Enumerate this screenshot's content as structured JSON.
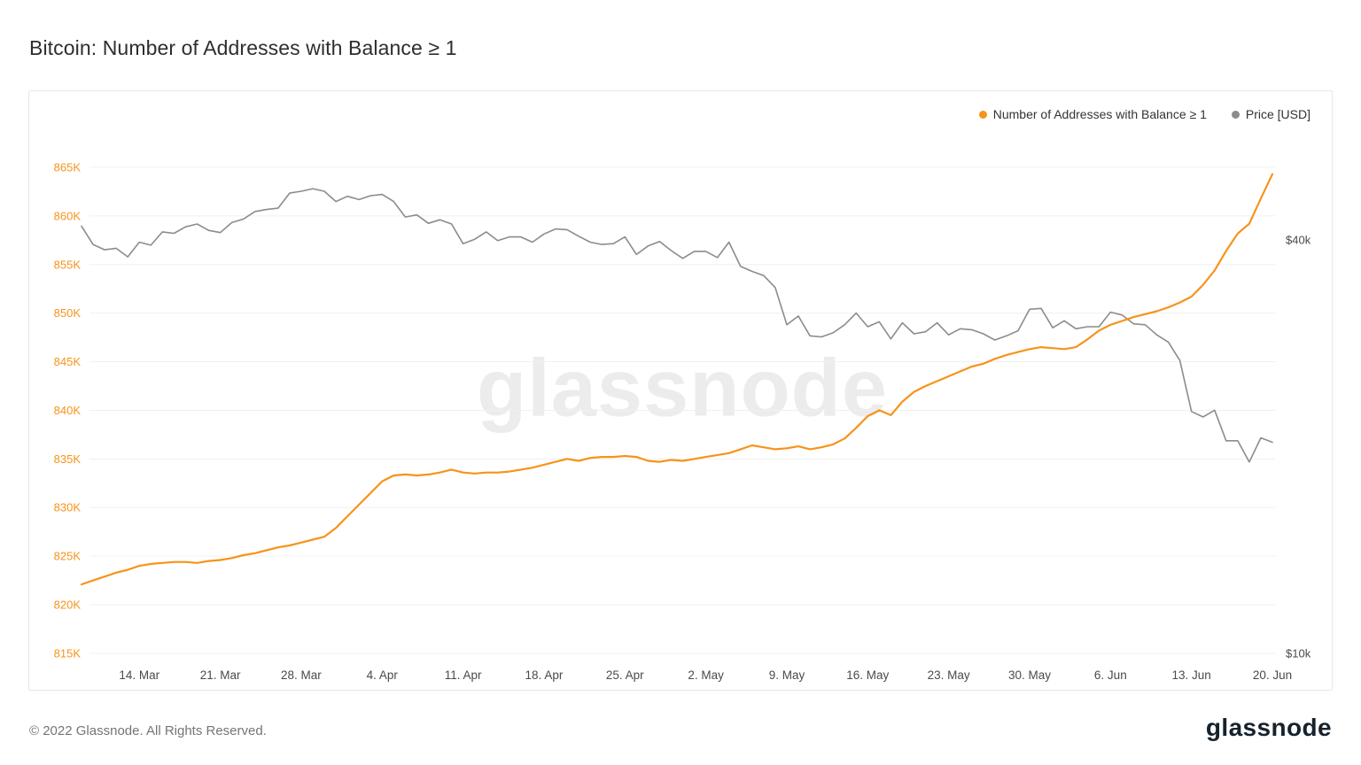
{
  "page": {
    "title": "Bitcoin: Number of Addresses with Balance ≥ 1",
    "watermark": "glassnode",
    "footer_copyright": "© 2022 Glassnode. All Rights Reserved.",
    "brand_logo_text": "glassnode"
  },
  "legend": [
    {
      "label": "Number of Addresses with Balance ≥ 1",
      "color": "#f7931a"
    },
    {
      "label": "Price [USD]",
      "color": "#8c8c8c"
    }
  ],
  "chart_data": {
    "type": "line",
    "title": "Bitcoin: Number of Addresses with Balance ≥ 1",
    "grid": true,
    "grid_color": "#f0f0f0",
    "legend_position": "top-right",
    "x_start": "9. Mar",
    "x_end": "20. Jun",
    "x_ticks": [
      {
        "index": 5,
        "label": "14. Mar"
      },
      {
        "index": 12,
        "label": "21. Mar"
      },
      {
        "index": 19,
        "label": "28. Mar"
      },
      {
        "index": 26,
        "label": "4. Apr"
      },
      {
        "index": 33,
        "label": "11. Apr"
      },
      {
        "index": 40,
        "label": "18. Apr"
      },
      {
        "index": 47,
        "label": "25. Apr"
      },
      {
        "index": 54,
        "label": "2. May"
      },
      {
        "index": 61,
        "label": "9. May"
      },
      {
        "index": 68,
        "label": "16. May"
      },
      {
        "index": 75,
        "label": "23. May"
      },
      {
        "index": 82,
        "label": "30. May"
      },
      {
        "index": 89,
        "label": "6. Jun"
      },
      {
        "index": 96,
        "label": "13. Jun"
      },
      {
        "index": 103,
        "label": "20. Jun"
      }
    ],
    "y_left": {
      "domain": [
        815,
        865
      ],
      "unit": "K addresses",
      "color": "#f7931a",
      "ticks": [
        {
          "value": 865,
          "label": "865K"
        },
        {
          "value": 860,
          "label": "860K"
        },
        {
          "value": 855,
          "label": "855K"
        },
        {
          "value": 850,
          "label": "850K"
        },
        {
          "value": 845,
          "label": "845K"
        },
        {
          "value": 840,
          "label": "840K"
        },
        {
          "value": 835,
          "label": "835K"
        },
        {
          "value": 830,
          "label": "830K"
        },
        {
          "value": 825,
          "label": "825K"
        },
        {
          "value": 820,
          "label": "820K"
        },
        {
          "value": 815,
          "label": "815K"
        }
      ]
    },
    "y_right": {
      "scale": "log",
      "unit": "USD (thousands)",
      "ticks": [
        {
          "value": 40,
          "label": "$40k"
        },
        {
          "value": 10,
          "label": "$10k"
        }
      ]
    },
    "series": [
      {
        "id": "addresses",
        "name": "Number of Addresses with Balance ≥ 1",
        "axis": "left",
        "unit": "K",
        "color": "#f7931a",
        "width": 2.2,
        "z": 1,
        "values": [
          822.1,
          822.5,
          822.9,
          823.3,
          823.6,
          824.0,
          824.2,
          824.3,
          824.4,
          824.4,
          824.3,
          824.5,
          824.6,
          824.8,
          825.1,
          825.3,
          825.6,
          825.9,
          826.1,
          826.4,
          826.7,
          827.0,
          827.9,
          829.1,
          830.3,
          831.5,
          832.7,
          833.3,
          833.4,
          833.3,
          833.4,
          833.6,
          833.9,
          833.6,
          833.5,
          833.6,
          833.6,
          833.7,
          833.9,
          834.1,
          834.4,
          834.7,
          835.0,
          834.8,
          835.1,
          835.2,
          835.2,
          835.3,
          835.2,
          834.8,
          834.7,
          834.9,
          834.8,
          835.0,
          835.2,
          835.4,
          835.6,
          836.0,
          836.4,
          836.2,
          836.0,
          836.1,
          836.3,
          836.0,
          836.2,
          836.5,
          837.1,
          838.2,
          839.4,
          840.0,
          839.5,
          840.9,
          841.9,
          842.5,
          843.0,
          843.5,
          844.0,
          844.5,
          844.8,
          845.3,
          845.7,
          846.0,
          846.3,
          846.5,
          846.4,
          846.3,
          846.5,
          847.3,
          848.2,
          848.8,
          849.2,
          849.6,
          849.9,
          850.2,
          850.6,
          851.1,
          851.7,
          852.9,
          854.4,
          856.4,
          858.2,
          859.2,
          861.8,
          864.3
        ]
      },
      {
        "id": "price",
        "name": "Price [USD]",
        "axis": "right",
        "unit": "$k",
        "color": "#8c8c8c",
        "width": 1.6,
        "z": 0,
        "values": [
          41.9,
          39.4,
          38.7,
          38.9,
          37.8,
          39.7,
          39.3,
          41.1,
          40.9,
          41.8,
          42.2,
          41.3,
          41.0,
          42.4,
          42.9,
          44.0,
          44.3,
          44.5,
          46.8,
          47.1,
          47.5,
          47.1,
          45.5,
          46.3,
          45.8,
          46.4,
          46.6,
          45.5,
          43.2,
          43.5,
          42.3,
          42.8,
          42.2,
          39.5,
          40.1,
          41.1,
          39.9,
          40.4,
          40.4,
          39.7,
          40.8,
          41.5,
          41.4,
          40.5,
          39.7,
          39.4,
          39.5,
          40.4,
          38.1,
          39.2,
          39.8,
          38.6,
          37.6,
          38.5,
          38.5,
          37.7,
          39.7,
          36.6,
          36.0,
          35.5,
          34.1,
          30.1,
          31.0,
          29.0,
          28.9,
          29.3,
          30.1,
          31.3,
          29.9,
          30.4,
          28.7,
          30.3,
          29.2,
          29.4,
          30.3,
          29.1,
          29.7,
          29.6,
          29.2,
          28.6,
          29.0,
          29.5,
          31.7,
          31.8,
          29.8,
          30.5,
          29.7,
          29.9,
          29.9,
          31.4,
          31.1,
          30.2,
          30.1,
          29.1,
          28.4,
          26.7,
          22.5,
          22.1,
          22.6,
          20.4,
          20.4,
          19.0,
          20.6,
          20.3
        ]
      }
    ]
  }
}
